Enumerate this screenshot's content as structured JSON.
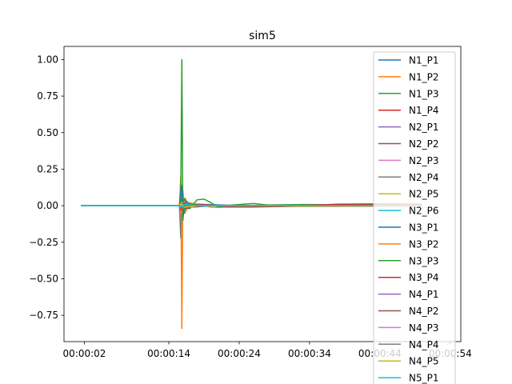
{
  "chart_data": {
    "type": "line",
    "title": "sim5",
    "xlabel": "",
    "ylabel": "",
    "x_unit": "seconds",
    "xlim": [
      -0.9,
      55.5
    ],
    "ylim": [
      -0.93,
      1.09
    ],
    "x_ticks": [
      {
        "value": 2,
        "label": "00:00:02"
      },
      {
        "value": 14,
        "label": "00:00:14"
      },
      {
        "value": 24,
        "label": "00:00:24"
      },
      {
        "value": 34,
        "label": "00:00:34"
      },
      {
        "value": 44,
        "label": "00:00:44"
      },
      {
        "value": 54,
        "label": "00:00:54"
      }
    ],
    "y_ticks": [
      {
        "value": -0.75,
        "label": "−0.75"
      },
      {
        "value": -0.5,
        "label": "−0.50"
      },
      {
        "value": -0.25,
        "label": "−0.25"
      },
      {
        "value": 0.0,
        "label": "0.00"
      },
      {
        "value": 0.25,
        "label": "0.25"
      },
      {
        "value": 0.5,
        "label": "0.50"
      },
      {
        "value": 0.75,
        "label": "0.75"
      },
      {
        "value": 1.0,
        "label": "1.00"
      }
    ],
    "grid": false,
    "legend_position": "right",
    "series": [
      {
        "name": "N1_P1",
        "color": "#1f77b4",
        "points": [
          [
            1.5,
            0
          ],
          [
            15.5,
            0
          ],
          [
            15.8,
            0.1
          ],
          [
            16.0,
            -0.05
          ],
          [
            16.3,
            0.05
          ],
          [
            16.8,
            -0.02
          ],
          [
            18,
            0.01
          ],
          [
            25,
            0
          ],
          [
            50,
            0
          ]
        ]
      },
      {
        "name": "N1_P2",
        "color": "#ff7f0e",
        "points": [
          [
            1.5,
            0
          ],
          [
            15.5,
            0
          ],
          [
            15.7,
            0.2
          ],
          [
            15.85,
            -0.84
          ],
          [
            16.0,
            0.1
          ],
          [
            16.3,
            -0.05
          ],
          [
            17,
            0.02
          ],
          [
            20,
            -0.01
          ],
          [
            26,
            -0.01
          ],
          [
            30,
            -0.005
          ],
          [
            38,
            -0.004
          ],
          [
            50,
            -0.003
          ]
        ]
      },
      {
        "name": "N1_P3",
        "color": "#2ca02c",
        "points": [
          [
            1.5,
            0
          ],
          [
            15.5,
            0
          ],
          [
            15.7,
            0.1
          ],
          [
            15.85,
            1.0
          ],
          [
            16.0,
            -0.1
          ],
          [
            16.3,
            0.05
          ],
          [
            17,
            -0.02
          ],
          [
            18,
            0.04
          ],
          [
            19,
            0.045
          ],
          [
            20,
            0.02
          ],
          [
            21,
            -0.01
          ],
          [
            23,
            0.005
          ],
          [
            26,
            0.015
          ],
          [
            28,
            0.005
          ],
          [
            33,
            0.008
          ],
          [
            42,
            0.005
          ],
          [
            50,
            0.003
          ]
        ]
      },
      {
        "name": "N1_P4",
        "color": "#d62728",
        "points": [
          [
            1.5,
            0
          ],
          [
            15.5,
            0
          ],
          [
            15.8,
            -0.05
          ],
          [
            16.1,
            0.04
          ],
          [
            16.5,
            -0.02
          ],
          [
            18,
            0.01
          ],
          [
            22,
            -0.005
          ],
          [
            30,
            -0.005
          ],
          [
            38,
            0.01
          ],
          [
            45,
            0.012
          ],
          [
            50,
            0.01
          ]
        ]
      },
      {
        "name": "N2_P1",
        "color": "#9467bd",
        "points": [
          [
            1.5,
            0
          ],
          [
            15.5,
            0
          ],
          [
            15.8,
            0.04
          ],
          [
            16.2,
            -0.03
          ],
          [
            17,
            0.01
          ],
          [
            19,
            0
          ],
          [
            50,
            0
          ]
        ]
      },
      {
        "name": "N2_P2",
        "color": "#8c564b",
        "points": [
          [
            1.5,
            0
          ],
          [
            15.5,
            0
          ],
          [
            15.8,
            -0.03
          ],
          [
            16.2,
            0.02
          ],
          [
            17,
            -0.01
          ],
          [
            19,
            0
          ],
          [
            50,
            0
          ]
        ]
      },
      {
        "name": "N2_P3",
        "color": "#e377c2",
        "points": [
          [
            1.5,
            0
          ],
          [
            15.5,
            0
          ],
          [
            15.8,
            0.03
          ],
          [
            16.2,
            -0.02
          ],
          [
            17,
            0.01
          ],
          [
            19,
            0
          ],
          [
            50,
            0
          ]
        ]
      },
      {
        "name": "N2_P4",
        "color": "#7f7f7f",
        "points": [
          [
            1.5,
            0
          ],
          [
            15.5,
            0
          ],
          [
            15.7,
            -0.22
          ],
          [
            15.9,
            0.06
          ],
          [
            16.2,
            -0.03
          ],
          [
            17,
            0.01
          ],
          [
            19,
            0
          ],
          [
            50,
            0
          ]
        ]
      },
      {
        "name": "N2_P5",
        "color": "#bcbd22",
        "points": [
          [
            1.5,
            0
          ],
          [
            15.5,
            0
          ],
          [
            15.8,
            0.03
          ],
          [
            16.2,
            -0.02
          ],
          [
            17,
            0.005
          ],
          [
            19,
            0
          ],
          [
            50,
            0
          ]
        ]
      },
      {
        "name": "N2_P6",
        "color": "#17becf",
        "points": [
          [
            1.5,
            0
          ],
          [
            15.5,
            0
          ],
          [
            15.8,
            -0.04
          ],
          [
            16.2,
            0.03
          ],
          [
            17,
            -0.01
          ],
          [
            19,
            0
          ],
          [
            50,
            0
          ]
        ]
      },
      {
        "name": "N3_P1",
        "color": "#1f77b4",
        "points": [
          [
            1.5,
            0
          ],
          [
            15.5,
            0
          ],
          [
            15.8,
            0.14
          ],
          [
            16.1,
            -0.06
          ],
          [
            16.5,
            0.03
          ],
          [
            17.5,
            -0.01
          ],
          [
            20,
            0
          ],
          [
            50,
            0
          ]
        ]
      },
      {
        "name": "N3_P2",
        "color": "#ff7f0e",
        "points": [
          [
            1.5,
            0
          ],
          [
            15.5,
            0
          ],
          [
            15.8,
            -0.05
          ],
          [
            16.2,
            0.03
          ],
          [
            17,
            -0.01
          ],
          [
            19,
            0
          ],
          [
            50,
            0
          ]
        ]
      },
      {
        "name": "N3_P3",
        "color": "#2ca02c",
        "points": [
          [
            1.5,
            0
          ],
          [
            15.5,
            0
          ],
          [
            15.8,
            0.05
          ],
          [
            16.2,
            -0.03
          ],
          [
            17,
            0.01
          ],
          [
            19,
            0
          ],
          [
            50,
            0
          ]
        ]
      },
      {
        "name": "N3_P4",
        "color": "#d62728",
        "points": [
          [
            1.5,
            0
          ],
          [
            15.5,
            0
          ],
          [
            15.8,
            -0.03
          ],
          [
            16.2,
            0.02
          ],
          [
            17,
            -0.005
          ],
          [
            19,
            0
          ],
          [
            50,
            0
          ]
        ]
      },
      {
        "name": "N4_P1",
        "color": "#9467bd",
        "points": [
          [
            1.5,
            0
          ],
          [
            15.5,
            0
          ],
          [
            15.8,
            0.02
          ],
          [
            16.2,
            -0.01
          ],
          [
            18,
            0
          ],
          [
            50,
            0
          ]
        ]
      },
      {
        "name": "N4_P2",
        "color": "#8c564b",
        "points": [
          [
            1.5,
            0
          ],
          [
            15.5,
            0
          ],
          [
            15.8,
            -0.02
          ],
          [
            16.2,
            0.01
          ],
          [
            18,
            0
          ],
          [
            50,
            0
          ]
        ]
      },
      {
        "name": "N4_P3",
        "color": "#e377c2",
        "points": [
          [
            1.5,
            0
          ],
          [
            15.5,
            0
          ],
          [
            15.8,
            0.02
          ],
          [
            16.2,
            -0.01
          ],
          [
            18,
            0
          ],
          [
            50,
            0
          ]
        ]
      },
      {
        "name": "N4_P4",
        "color": "#7f7f7f",
        "points": [
          [
            1.5,
            0
          ],
          [
            15.5,
            0
          ],
          [
            15.8,
            -0.02
          ],
          [
            16.2,
            0.01
          ],
          [
            18,
            0
          ],
          [
            50,
            0
          ]
        ]
      },
      {
        "name": "N4_P5",
        "color": "#bcbd22",
        "points": [
          [
            1.5,
            0
          ],
          [
            15.5,
            0
          ],
          [
            15.8,
            0.01
          ],
          [
            16.2,
            -0.01
          ],
          [
            18,
            0
          ],
          [
            50,
            0
          ]
        ]
      },
      {
        "name": "N5_P1",
        "color": "#17becf",
        "points": [
          [
            1.5,
            0
          ],
          [
            15.5,
            0
          ],
          [
            15.8,
            -0.01
          ],
          [
            16.2,
            0.01
          ],
          [
            18,
            0
          ],
          [
            50,
            0
          ]
        ]
      }
    ]
  }
}
